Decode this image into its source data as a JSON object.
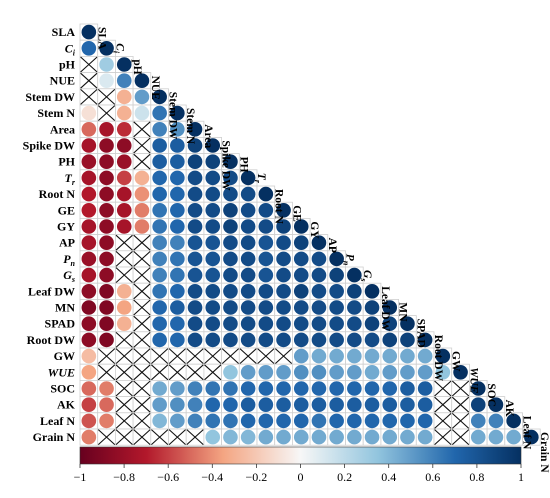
{
  "chart_data": {
    "type": "heatmap",
    "variables": [
      "SLA",
      "Ci",
      "pH",
      "NUE",
      "Stem DW",
      "Stem N",
      "Area",
      "Spike DW",
      "PH",
      "Tr",
      "Root N",
      "GE",
      "GY",
      "AP",
      "Pn",
      "Gs",
      "Leaf DW",
      "MN",
      "SPAD",
      "Root DW",
      "GW",
      "WUE",
      "SOC",
      "AK",
      "Leaf N",
      "Grain N"
    ],
    "labels": [
      {
        "main": "SLA",
        "sub": "",
        "italic": false
      },
      {
        "main": "C",
        "sub": "i",
        "italic": true
      },
      {
        "main": "pH",
        "sub": "",
        "italic": false
      },
      {
        "main": "NUE",
        "sub": "",
        "italic": false
      },
      {
        "main": "Stem DW",
        "sub": "",
        "italic": false
      },
      {
        "main": "Stem N",
        "sub": "",
        "italic": false
      },
      {
        "main": "Area",
        "sub": "",
        "italic": false
      },
      {
        "main": "Spike DW",
        "sub": "",
        "italic": false
      },
      {
        "main": "PH",
        "sub": "",
        "italic": false
      },
      {
        "main": "T",
        "sub": "r",
        "italic": true
      },
      {
        "main": "Root N",
        "sub": "",
        "italic": false
      },
      {
        "main": "GE",
        "sub": "",
        "italic": false
      },
      {
        "main": "GY",
        "sub": "",
        "italic": false
      },
      {
        "main": "AP",
        "sub": "",
        "italic": false
      },
      {
        "main": "P",
        "sub": "n",
        "italic": true
      },
      {
        "main": "G",
        "sub": "s",
        "italic": true
      },
      {
        "main": "Leaf DW",
        "sub": "",
        "italic": false
      },
      {
        "main": "MN",
        "sub": "",
        "italic": false
      },
      {
        "main": "SPAD",
        "sub": "",
        "italic": false
      },
      {
        "main": "Root DW",
        "sub": "",
        "italic": false
      },
      {
        "main": "GW",
        "sub": "",
        "italic": false
      },
      {
        "main": "WUE",
        "sub": "",
        "italic": true
      },
      {
        "main": "SOC",
        "sub": "",
        "italic": false
      },
      {
        "main": "AK",
        "sub": "",
        "italic": false
      },
      {
        "main": "Leaf N",
        "sub": "",
        "italic": false
      },
      {
        "main": "Grain N",
        "sub": "",
        "italic": false
      }
    ],
    "matrix_lower_triangle": [
      [
        1
      ],
      [
        0.7,
        1
      ],
      [
        null,
        0.3,
        1
      ],
      [
        null,
        0.1,
        0.6,
        1
      ],
      [
        null,
        null,
        -0.3,
        0.5,
        1
      ],
      [
        -0.1,
        null,
        -0.3,
        0.15,
        0.65,
        1
      ],
      [
        -0.5,
        -0.75,
        -0.65,
        null,
        0.6,
        0.55,
        1
      ],
      [
        -0.75,
        -0.85,
        -0.85,
        null,
        0.75,
        0.75,
        0.9,
        1
      ],
      [
        -0.8,
        -0.85,
        -0.8,
        null,
        0.75,
        0.75,
        0.9,
        0.9,
        1
      ],
      [
        -0.75,
        -0.85,
        -0.6,
        -0.3,
        0.7,
        0.7,
        0.85,
        0.85,
        0.85,
        1
      ],
      [
        -0.7,
        -0.85,
        -0.75,
        -0.4,
        0.7,
        0.7,
        0.85,
        0.85,
        0.85,
        0.85,
        1
      ],
      [
        -0.7,
        -0.85,
        -0.75,
        -0.45,
        0.65,
        0.7,
        0.85,
        0.85,
        0.9,
        0.85,
        0.85,
        1
      ],
      [
        -0.75,
        -0.85,
        -0.75,
        -0.45,
        0.65,
        0.7,
        0.85,
        0.85,
        0.9,
        0.85,
        0.85,
        0.9,
        1
      ],
      [
        -0.75,
        -0.85,
        null,
        null,
        0.6,
        0.6,
        0.8,
        0.8,
        0.85,
        0.85,
        0.8,
        0.85,
        0.9,
        1
      ],
      [
        -0.8,
        -0.85,
        null,
        null,
        0.6,
        0.65,
        0.8,
        0.8,
        0.85,
        0.85,
        0.8,
        0.85,
        0.85,
        0.85,
        1
      ],
      [
        -0.75,
        -0.85,
        null,
        null,
        0.6,
        0.65,
        0.8,
        0.8,
        0.85,
        0.85,
        0.8,
        0.85,
        0.85,
        0.85,
        0.9,
        1
      ],
      [
        -0.85,
        -0.9,
        -0.3,
        null,
        0.65,
        0.7,
        0.85,
        0.85,
        0.85,
        0.85,
        0.85,
        0.85,
        0.9,
        0.85,
        0.85,
        0.9,
        1
      ],
      [
        -0.9,
        -0.9,
        -0.35,
        null,
        0.7,
        0.75,
        0.85,
        0.85,
        0.85,
        0.85,
        0.85,
        0.85,
        0.85,
        0.85,
        0.85,
        0.85,
        0.9,
        1
      ],
      [
        -0.85,
        -0.9,
        -0.3,
        null,
        0.7,
        0.7,
        0.85,
        0.85,
        0.85,
        0.85,
        0.85,
        0.85,
        0.85,
        0.85,
        0.85,
        0.85,
        0.9,
        0.9,
        1
      ],
      [
        -0.85,
        -0.9,
        null,
        null,
        0.7,
        0.7,
        0.85,
        0.85,
        0.85,
        0.85,
        0.85,
        0.85,
        0.85,
        0.85,
        0.85,
        0.85,
        0.85,
        0.9,
        0.9,
        1
      ],
      [
        -0.25,
        null,
        null,
        null,
        null,
        null,
        null,
        null,
        null,
        null,
        null,
        null,
        0.5,
        0.45,
        0.45,
        0.45,
        0.45,
        0.45,
        0.45,
        0.45,
        1
      ],
      [
        -0.35,
        null,
        null,
        null,
        null,
        null,
        null,
        null,
        0.35,
        0.5,
        0.5,
        0.5,
        0.55,
        0.55,
        0.5,
        0.5,
        0.45,
        0.5,
        0.5,
        0.5,
        0.35,
        1
      ],
      [
        -0.5,
        -0.45,
        null,
        null,
        0.45,
        0.5,
        0.6,
        0.65,
        0.65,
        0.7,
        0.7,
        0.7,
        0.7,
        0.7,
        0.7,
        0.7,
        0.7,
        0.7,
        0.75,
        0.75,
        null,
        null,
        1
      ],
      [
        -0.6,
        -0.5,
        null,
        null,
        0.5,
        0.55,
        0.6,
        0.7,
        0.7,
        0.75,
        0.75,
        0.75,
        0.75,
        0.75,
        0.75,
        0.75,
        0.75,
        0.75,
        0.75,
        0.75,
        null,
        null,
        0.9,
        1
      ],
      [
        -0.55,
        -0.45,
        null,
        null,
        0.4,
        0.5,
        0.6,
        0.65,
        0.65,
        0.7,
        0.7,
        0.7,
        0.7,
        0.65,
        0.7,
        0.7,
        0.7,
        0.7,
        0.7,
        0.7,
        null,
        null,
        0.6,
        0.6,
        1
      ],
      [
        -0.45,
        null,
        null,
        null,
        null,
        null,
        null,
        0.35,
        0.4,
        0.4,
        0.45,
        0.45,
        0.45,
        0.45,
        0.45,
        0.45,
        0.45,
        0.45,
        0.45,
        0.45,
        null,
        null,
        0.45,
        0.45,
        0.45,
        1
      ]
    ],
    "insignificant_marker": "X",
    "colorbar": {
      "range": [
        -1,
        1
      ],
      "ticks": [
        -1,
        -0.8,
        -0.6,
        -0.4,
        -0.2,
        0,
        0.2,
        0.4,
        0.6,
        0.8,
        1
      ],
      "tick_labels": [
        "−1",
        "−0.8",
        "−0.6",
        "−0.4",
        "−0.2",
        "0",
        "0.2",
        "0.4",
        "0.6",
        "0.8",
        "1"
      ],
      "neg_color": "#67001f",
      "mid_color": "#f7f7f7",
      "pos_color": "#053061"
    },
    "grid": true,
    "legend": "bottom colorbar"
  },
  "colors": {
    "cell_border": "#cfcfcf",
    "cross": "#111111"
  }
}
